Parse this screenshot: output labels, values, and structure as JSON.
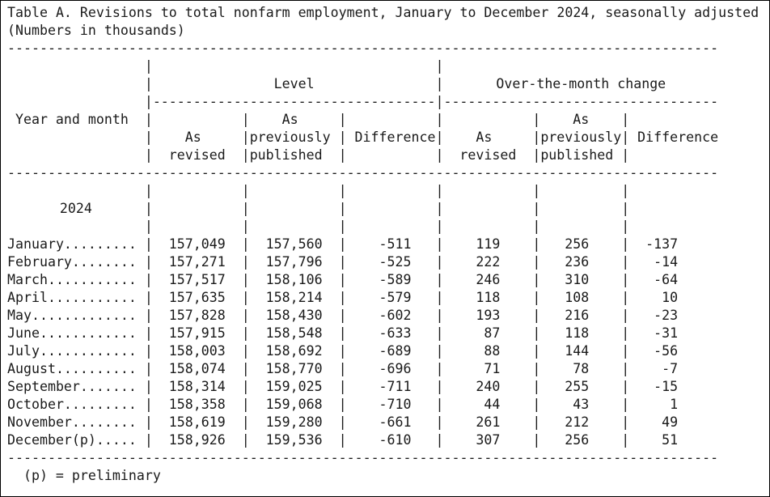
{
  "page": {
    "title": "Table A. Revisions to total nonfarm employment, January to December 2024, seasonally adjusted",
    "subtitle": "(Numbers in thousands)",
    "footnote": "(p) = preliminary"
  },
  "glyphs": {
    "pipe": "|"
  },
  "rules": {
    "full": 88,
    "level": 35,
    "otm": 34
  },
  "header": {
    "stub_label": "Year and month",
    "year_label": "2024",
    "group_level": "Level",
    "group_otm": "Over-the-month change",
    "sub": {
      "as": "As",
      "previously": "previously",
      "published": "published",
      "revised": "revised",
      "difference": "Difference"
    }
  },
  "rows": [
    {
      "label": "January.........",
      "level_revised": "157,049",
      "level_published": "157,560",
      "level_diff": "-511",
      "otm_revised": "119",
      "otm_published": "256",
      "otm_diff": "-137"
    },
    {
      "label": "February........",
      "level_revised": "157,271",
      "level_published": "157,796",
      "level_diff": "-525",
      "otm_revised": "222",
      "otm_published": "236",
      "otm_diff": "-14"
    },
    {
      "label": "March...........",
      "level_revised": "157,517",
      "level_published": "158,106",
      "level_diff": "-589",
      "otm_revised": "246",
      "otm_published": "310",
      "otm_diff": "-64"
    },
    {
      "label": "April...........",
      "level_revised": "157,635",
      "level_published": "158,214",
      "level_diff": "-579",
      "otm_revised": "118",
      "otm_published": "108",
      "otm_diff": "10"
    },
    {
      "label": "May.............",
      "level_revised": "157,828",
      "level_published": "158,430",
      "level_diff": "-602",
      "otm_revised": "193",
      "otm_published": "216",
      "otm_diff": "-23"
    },
    {
      "label": "June............",
      "level_revised": "157,915",
      "level_published": "158,548",
      "level_diff": "-633",
      "otm_revised": "87",
      "otm_published": "118",
      "otm_diff": "-31"
    },
    {
      "label": "July............",
      "level_revised": "158,003",
      "level_published": "158,692",
      "level_diff": "-689",
      "otm_revised": "88",
      "otm_published": "144",
      "otm_diff": "-56"
    },
    {
      "label": "August..........",
      "level_revised": "158,074",
      "level_published": "158,770",
      "level_diff": "-696",
      "otm_revised": "71",
      "otm_published": "78",
      "otm_diff": "-7"
    },
    {
      "label": "September.......",
      "level_revised": "158,314",
      "level_published": "159,025",
      "level_diff": "-711",
      "otm_revised": "240",
      "otm_published": "255",
      "otm_diff": "-15"
    },
    {
      "label": "October.........",
      "level_revised": "158,358",
      "level_published": "159,068",
      "level_diff": "-710",
      "otm_revised": "44",
      "otm_published": "43",
      "otm_diff": "1"
    },
    {
      "label": "November........",
      "level_revised": "158,619",
      "level_published": "159,280",
      "level_diff": "-661",
      "otm_revised": "261",
      "otm_published": "212",
      "otm_diff": "49"
    },
    {
      "label": "December(p).....",
      "level_revised": "158,926",
      "level_published": "159,536",
      "level_diff": "-610",
      "otm_revised": "307",
      "otm_published": "256",
      "otm_diff": "51"
    }
  ],
  "colors": {
    "background": "#ffffff",
    "border": "#000000",
    "text": "#1a1a1a"
  }
}
